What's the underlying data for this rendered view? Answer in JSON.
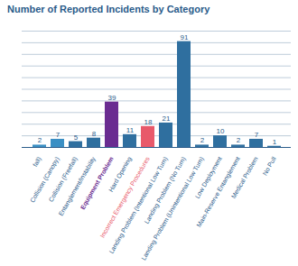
{
  "chart_data": {
    "type": "bar",
    "title": "Number of Reported Incidents by Category",
    "categories": [
      "fall)",
      "Collision (Canopy)",
      "Collision (Freefall)",
      "Entanglement/Instability",
      "Equipment Problem",
      "Hard Opening",
      "Incorrect Emergency Procedures",
      "Landing Problem (Intentional Low Turn)",
      "Landing Problem (No Turn)",
      "Landing Problem (Unintentional Low Turn)",
      "Low Deployment",
      "Main-Reserve Entanglement",
      "Medical Problem",
      "No Pull"
    ],
    "values": [
      2,
      7,
      5,
      8,
      39,
      11,
      18,
      21,
      91,
      2,
      10,
      2,
      7,
      1
    ],
    "colors": [
      "#3a8fc4",
      "#3a8fc4",
      "#2f6f9f",
      "#2f6f9f",
      "#6a2c91",
      "#2f6f9f",
      "#e8596a",
      "#2f6f9f",
      "#2f6f9f",
      "#2f6f9f",
      "#2f6f9f",
      "#2f6f9f",
      "#2f6f9f",
      "#2f6f9f"
    ],
    "ylim": [
      0,
      100
    ],
    "yticks": [
      0,
      10,
      20,
      30,
      40,
      50,
      60,
      70,
      80,
      90,
      100
    ],
    "grid": true,
    "data_labels": true,
    "tick_labels": "x"
  }
}
